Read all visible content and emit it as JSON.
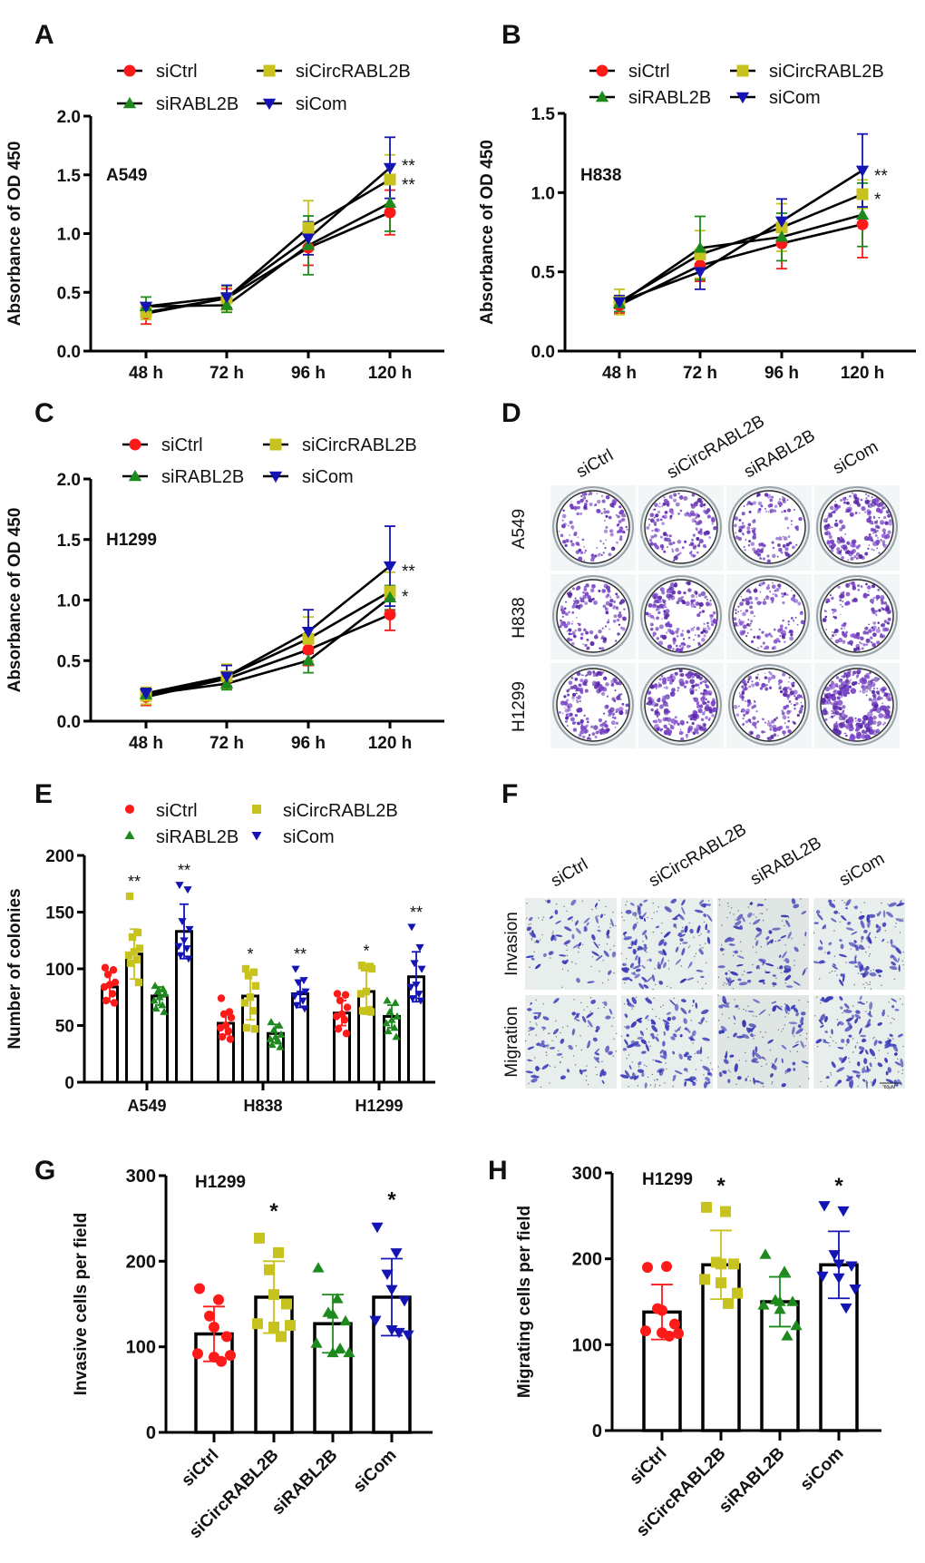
{
  "colors": {
    "siCtrl": "#ff1a1a",
    "siCircRABL2B": "#c8c21e",
    "siRABL2B": "#1e8a1e",
    "siCom": "#1414b4",
    "stain_colony": "#7a45c8",
    "stain_cell": "#3a3ab8"
  },
  "panel_labels": [
    "A",
    "B",
    "C",
    "D",
    "E",
    "F",
    "G",
    "H"
  ],
  "chart_data": [
    {
      "panel": "A",
      "type": "line",
      "cell_line": "A549",
      "ylabel": "Absorbance of OD 450",
      "xlabel": "",
      "categories": [
        "48 h",
        "72 h",
        "96 h",
        "120 h"
      ],
      "ylim": [
        0,
        2.0
      ],
      "yticks": [
        "0.0",
        "0.5",
        "1.0",
        "1.5",
        "2.0"
      ],
      "legend": "top",
      "series": [
        {
          "name": "siCtrl",
          "marker": "circle",
          "values": [
            0.32,
            0.45,
            0.88,
            1.18
          ],
          "errors": [
            0.09,
            0.08,
            0.15,
            0.19
          ]
        },
        {
          "name": "siCircRABL2B",
          "marker": "square",
          "values": [
            0.33,
            0.45,
            1.05,
            1.46
          ],
          "errors": [
            0.06,
            0.1,
            0.23,
            0.21
          ]
        },
        {
          "name": "siRABL2B",
          "marker": "triangle-up",
          "values": [
            0.38,
            0.39,
            0.9,
            1.26
          ],
          "errors": [
            0.08,
            0.06,
            0.25,
            0.24
          ]
        },
        {
          "name": "siCom",
          "marker": "triangle-down",
          "values": [
            0.38,
            0.46,
            0.96,
            1.56
          ],
          "errors": [
            0.03,
            0.1,
            0.14,
            0.26
          ]
        }
      ],
      "annotations": [
        {
          "series": "siCom",
          "category": "120 h",
          "text": "**"
        },
        {
          "series": "siCircRABL2B",
          "category": "120 h",
          "text": "**"
        }
      ]
    },
    {
      "panel": "B",
      "type": "line",
      "cell_line": "H838",
      "ylabel": "Absorbance of OD 450",
      "xlabel": "",
      "categories": [
        "48 h",
        "72 h",
        "96 h",
        "120 h"
      ],
      "ylim": [
        0,
        1.5
      ],
      "yticks": [
        "0.0",
        "0.5",
        "1.0",
        "1.5"
      ],
      "legend": "top",
      "series": [
        {
          "name": "siCtrl",
          "marker": "circle",
          "values": [
            0.29,
            0.54,
            0.68,
            0.8
          ],
          "errors": [
            0.05,
            0.1,
            0.16,
            0.21
          ]
        },
        {
          "name": "siCircRABL2B",
          "marker": "square",
          "values": [
            0.31,
            0.61,
            0.78,
            0.99
          ],
          "errors": [
            0.08,
            0.15,
            0.15,
            0.09
          ]
        },
        {
          "name": "siRABL2B",
          "marker": "triangle-up",
          "values": [
            0.3,
            0.65,
            0.72,
            0.86
          ],
          "errors": [
            0.05,
            0.2,
            0.15,
            0.2
          ]
        },
        {
          "name": "siCom",
          "marker": "triangle-down",
          "values": [
            0.31,
            0.5,
            0.82,
            1.14
          ],
          "errors": [
            0.04,
            0.11,
            0.14,
            0.23
          ]
        }
      ],
      "annotations": [
        {
          "series": "siCom",
          "category": "120 h",
          "text": "**"
        },
        {
          "series": "siCircRABL2B",
          "category": "120 h",
          "text": "*"
        }
      ]
    },
    {
      "panel": "C",
      "type": "line",
      "cell_line": "H1299",
      "ylabel": "Absorbance of OD 450",
      "xlabel": "",
      "categories": [
        "48 h",
        "72 h",
        "96 h",
        "120 h"
      ],
      "ylim": [
        0,
        2.0
      ],
      "yticks": [
        "0.0",
        "0.5",
        "1.0",
        "1.5",
        "2.0"
      ],
      "legend": "top",
      "series": [
        {
          "name": "siCtrl",
          "marker": "circle",
          "values": [
            0.2,
            0.35,
            0.59,
            0.88
          ],
          "errors": [
            0.07,
            0.06,
            0.13,
            0.13
          ]
        },
        {
          "name": "siCircRABL2B",
          "marker": "square",
          "values": [
            0.21,
            0.37,
            0.68,
            1.07
          ],
          "errors": [
            0.07,
            0.1,
            0.18,
            0.16
          ]
        },
        {
          "name": "siRABL2B",
          "marker": "triangle-up",
          "values": [
            0.22,
            0.31,
            0.5,
            1.02
          ],
          "errors": [
            0.05,
            0.05,
            0.1,
            0.1
          ]
        },
        {
          "name": "siCom",
          "marker": "triangle-down",
          "values": [
            0.23,
            0.37,
            0.74,
            1.28
          ],
          "errors": [
            0.04,
            0.09,
            0.18,
            0.33
          ]
        }
      ],
      "annotations": [
        {
          "series": "siCom",
          "category": "120 h",
          "text": "**"
        },
        {
          "series": "siCircRABL2B",
          "category": "120 h",
          "text": "*"
        }
      ]
    },
    {
      "panel": "E",
      "type": "bar",
      "ylabel": "Number of colonies",
      "xlabel": "",
      "categories": [
        "A549",
        "H838",
        "H1299"
      ],
      "ylim": [
        0,
        200
      ],
      "yticks": [
        "0",
        "50",
        "100",
        "150",
        "200"
      ],
      "legend": "top",
      "series": [
        {
          "name": "siCtrl",
          "marker": "circle",
          "means": [
            84,
            52,
            61
          ],
          "sds": [
            13,
            10,
            11
          ],
          "points": [
            [
              101,
              99,
              95,
              88,
              86,
              84,
              78,
              72,
              70
            ],
            [
              74,
              62,
              60,
              57,
              50,
              48,
              45,
              40,
              38
            ],
            [
              78,
              77,
              72,
              66,
              60,
              58,
              55,
              47,
              43
            ]
          ]
        },
        {
          "name": "siCircRABL2B",
          "marker": "square",
          "means": [
            113,
            76,
            80
          ],
          "sds": [
            22,
            21,
            20
          ],
          "points": [
            [
              164,
              132,
              128,
              118,
              115,
              112,
              108,
              105,
              88
            ],
            [
              100,
              97,
              94,
              85,
              75,
              70,
              63,
              48,
              47
            ],
            [
              103,
              102,
              101,
              100,
              80,
              78,
              64,
              63,
              62
            ]
          ]
        },
        {
          "name": "siRABL2B",
          "marker": "triangle-up",
          "means": [
            76,
            43,
            58
          ],
          "sds": [
            8,
            8,
            10
          ],
          "points": [
            [
              85,
              82,
              80,
              78,
              75,
              72,
              68,
              65,
              62
            ],
            [
              53,
              50,
              46,
              42,
              40,
              38,
              36,
              33,
              31
            ],
            [
              72,
              70,
              62,
              58,
              55,
              52,
              48,
              45,
              40
            ]
          ]
        },
        {
          "name": "siCom",
          "marker": "triangle-down",
          "means": [
            133,
            78,
            93
          ],
          "sds": [
            24,
            12,
            22
          ],
          "points": [
            [
              174,
              170,
              142,
              135,
              125,
              120,
              118,
              112,
              109
            ],
            [
              100,
              90,
              88,
              80,
              78,
              76,
              72,
              68,
              65
            ],
            [
              137,
              119,
              105,
              100,
              86,
              84,
              78,
              74,
              72
            ]
          ]
        }
      ],
      "annotations": [
        {
          "category": "A549",
          "series": "siCircRABL2B",
          "text": "**"
        },
        {
          "category": "A549",
          "series": "siCom",
          "text": "**"
        },
        {
          "category": "H838",
          "series": "siCircRABL2B",
          "text": "*"
        },
        {
          "category": "H838",
          "series": "siCom",
          "text": "**"
        },
        {
          "category": "H1299",
          "series": "siCircRABL2B",
          "text": "*"
        },
        {
          "category": "H1299",
          "series": "siCom",
          "text": "**"
        }
      ]
    },
    {
      "panel": "G",
      "type": "bar",
      "cell_line": "H1299",
      "ylabel": "Invasive cells per field",
      "xlabel": "",
      "categories": [
        "siCtrl",
        "siCircRABL2B",
        "siRABL2B",
        "siCom"
      ],
      "ylim": [
        0,
        300
      ],
      "yticks": [
        "0",
        "100",
        "200",
        "300"
      ],
      "bars": [
        {
          "series": "siCtrl",
          "marker": "circle",
          "mean": 115,
          "sd": 32,
          "points": [
            168,
            155,
            136,
            123,
            112,
            92,
            88,
            90,
            83
          ]
        },
        {
          "series": "siCircRABL2B",
          "marker": "square",
          "mean": 158,
          "sd": 42,
          "points": [
            227,
            210,
            190,
            161,
            150,
            127,
            123,
            125,
            112
          ]
        },
        {
          "series": "siRABL2B",
          "marker": "triangle-up",
          "mean": 127,
          "sd": 34,
          "points": [
            192,
            156,
            140,
            138,
            130,
            104,
            93,
            93,
            98
          ]
        },
        {
          "series": "siCom",
          "marker": "triangle-down",
          "mean": 158,
          "sd": 45,
          "points": [
            240,
            210,
            185,
            167,
            154,
            131,
            120,
            114,
            117
          ]
        }
      ],
      "annotations": [
        {
          "category": "siCircRABL2B",
          "text": "*"
        },
        {
          "category": "siCom",
          "text": "*"
        }
      ]
    },
    {
      "panel": "H",
      "type": "bar",
      "cell_line": "H1299",
      "ylabel": "Migrating cells per field",
      "xlabel": "",
      "categories": [
        "siCtrl",
        "siCircRABL2B",
        "siRABL2B",
        "siCom"
      ],
      "ylim": [
        0,
        300
      ],
      "yticks": [
        "0",
        "100",
        "200",
        "300"
      ],
      "bars": [
        {
          "series": "siCtrl",
          "marker": "circle",
          "mean": 138,
          "sd": 32,
          "points": [
            190,
            191,
            142,
            140,
            124,
            116,
            114,
            113,
            110
          ]
        },
        {
          "series": "siCircRABL2B",
          "marker": "square",
          "mean": 193,
          "sd": 40,
          "points": [
            260,
            255,
            196,
            194,
            194,
            176,
            172,
            160,
            148
          ]
        },
        {
          "series": "siRABL2B",
          "marker": "triangle-up",
          "mean": 150,
          "sd": 29,
          "points": [
            205,
            185,
            152,
            150,
            150,
            146,
            141,
            122,
            110
          ]
        },
        {
          "series": "siCom",
          "marker": "triangle-down",
          "mean": 193,
          "sd": 39,
          "points": [
            262,
            256,
            205,
            194,
            192,
            180,
            178,
            165,
            143
          ]
        }
      ],
      "annotations": [
        {
          "category": "siCircRABL2B",
          "text": "*"
        },
        {
          "category": "siCom",
          "text": "*"
        }
      ]
    }
  ],
  "photos": {
    "D": {
      "columns": [
        "siCtrl",
        "siCircRABL2B",
        "siRABL2B",
        "siCom"
      ],
      "rows": [
        "A549",
        "H838",
        "H1299"
      ],
      "colony_density": [
        [
          0.5,
          0.6,
          0.45,
          0.75
        ],
        [
          0.55,
          0.65,
          0.5,
          0.6
        ],
        [
          0.7,
          0.85,
          0.6,
          1.0
        ]
      ]
    },
    "F": {
      "columns": [
        "siCtrl",
        "siCircRABL2B",
        "siRABL2B",
        "siCom"
      ],
      "rows": [
        "Invasion",
        "Migration"
      ],
      "scale_bar": "60μM",
      "cell_density": [
        [
          0.45,
          0.85,
          0.6,
          0.75
        ],
        [
          0.5,
          0.9,
          0.65,
          0.85
        ]
      ]
    }
  }
}
